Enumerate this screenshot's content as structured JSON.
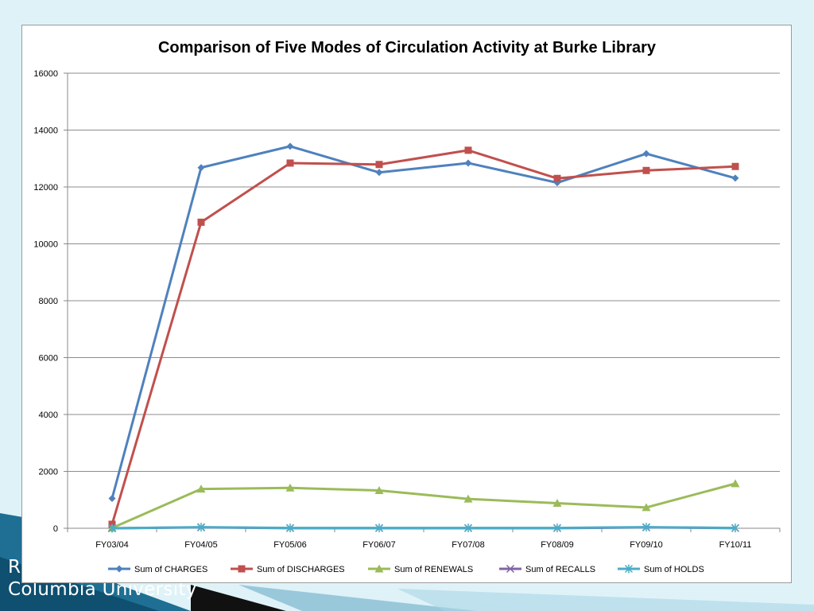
{
  "footer": {
    "line1": "R",
    "line2": "Columbia University"
  },
  "colors": {
    "charges": "#4f81bd",
    "discharges": "#c0504d",
    "renewals": "#9bbb59",
    "recalls": "#8064a2",
    "holds": "#4bacc6"
  },
  "chart_data": {
    "type": "line",
    "title": "Comparison of Five Modes of Circulation Activity at Burke Library",
    "xlabel": "",
    "ylabel": "",
    "ylim": [
      0,
      16000
    ],
    "yticks": [
      0,
      2000,
      4000,
      6000,
      8000,
      10000,
      12000,
      14000,
      16000
    ],
    "grid": true,
    "legend_position": "bottom",
    "categories": [
      "FY03/04",
      "FY04/05",
      "FY05/06",
      "FY06/07",
      "FY07/08",
      "FY08/09",
      "FY09/10",
      "FY10/11"
    ],
    "series": [
      {
        "name": "Sum of CHARGES",
        "color": "#4f81bd",
        "marker": "diamond",
        "values": [
          1050,
          12680,
          13430,
          12510,
          12840,
          12150,
          13170,
          12310
        ]
      },
      {
        "name": "Sum of DISCHARGES",
        "color": "#c0504d",
        "marker": "square",
        "values": [
          140,
          10760,
          12840,
          12790,
          13290,
          12300,
          12580,
          12720
        ]
      },
      {
        "name": "Sum of RENEWALS",
        "color": "#9bbb59",
        "marker": "triangle",
        "values": [
          10,
          1380,
          1420,
          1330,
          1030,
          880,
          730,
          1570
        ]
      },
      {
        "name": "Sum of RECALLS",
        "color": "#8064a2",
        "marker": "x",
        "values": [
          0,
          30,
          5,
          5,
          5,
          5,
          30,
          5
        ]
      },
      {
        "name": "Sum of HOLDS",
        "color": "#4bacc6",
        "marker": "star",
        "values": [
          0,
          40,
          10,
          10,
          10,
          10,
          40,
          10
        ]
      }
    ]
  }
}
